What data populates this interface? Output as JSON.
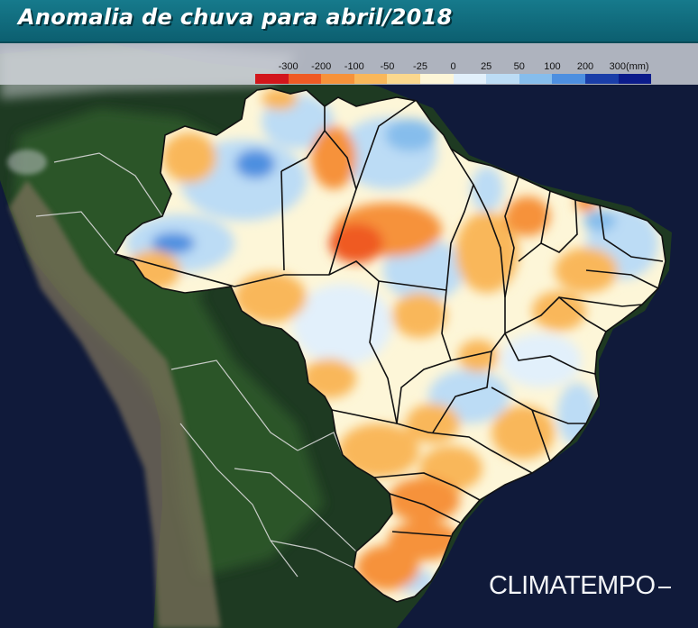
{
  "title": "Anomalia de chuva para abril/2018",
  "legend": {
    "labels": [
      "-300",
      "-200",
      "-100",
      "-50",
      "-25",
      "0",
      "25",
      "50",
      "100",
      "200",
      "300(mm)"
    ],
    "colors": [
      "#d2161b",
      "#ef5a24",
      "#f6923a",
      "#f9b75a",
      "#fbd88e",
      "#fdf6d8",
      "#e2f0fb",
      "#bcdcf5",
      "#86bdec",
      "#4d8fe0",
      "#1a3ea8",
      "#0b1b8a"
    ]
  },
  "brand": "CLIMATEMPO",
  "map_colors": {
    "ocean": "#101a3a",
    "land_dark": "#1e3a22",
    "land_green": "#2f5a2c",
    "andes": "#7a6f5a",
    "cloud": "#c9ccd0",
    "state_border": "#111111",
    "country_border": "#d8d8d8"
  }
}
